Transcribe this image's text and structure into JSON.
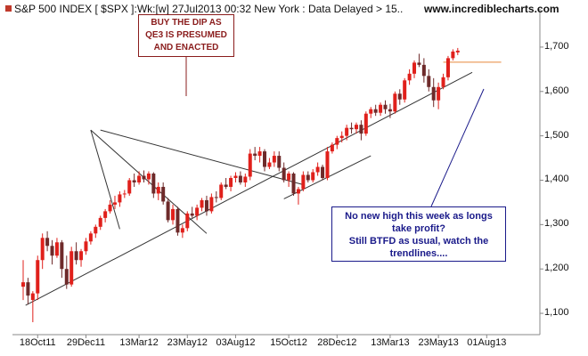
{
  "header": {
    "title": "S&P 500 INDEX [ $SPX ]:Wk:[w]  27Jul2013 00:32 New York : Data Delayed > 15..",
    "brand": "www.incrediblecharts.com",
    "marker_color": "#c0392b"
  },
  "annotations": {
    "top_note": [
      "BUY THE DIP AS",
      "QE3 IS PRESUMED",
      "AND ENACTED"
    ],
    "bottom_note": [
      "No new high this week as longs",
      "take profit?",
      "Still BTFD as usual, watch the",
      "trendlines...."
    ]
  },
  "colors": {
    "up": "#e0201b",
    "down": "#6e2a2a",
    "trendline": "#333333",
    "resistance": "#e8883a",
    "note_red": "#8a1c1c",
    "note_blue": "#1a1a8a",
    "axis": "#888888"
  },
  "chart_data": {
    "type": "candlestick",
    "title": "S&P 500 INDEX [ $SPX ]:Wk:[w]",
    "ylim": [
      1060,
      1760
    ],
    "y_ticks": [
      {
        "value": 1700,
        "label": "1,700"
      },
      {
        "value": 1600,
        "label": "1,600"
      },
      {
        "value": 1500,
        "label": "1,500"
      },
      {
        "value": 1400,
        "label": "1,400"
      },
      {
        "value": 1300,
        "label": "1,300"
      },
      {
        "value": 1200,
        "label": "1,200"
      },
      {
        "value": 1100,
        "label": "1,100"
      }
    ],
    "x_ticks": [
      {
        "week": 3,
        "label": "18Oct11"
      },
      {
        "week": 13,
        "label": "29Dec11"
      },
      {
        "week": 24,
        "label": "13Mar12"
      },
      {
        "week": 34,
        "label": "23May12"
      },
      {
        "week": 44,
        "label": "03Aug12"
      },
      {
        "week": 55,
        "label": "15Oct12"
      },
      {
        "week": 65,
        "label": "28Dec12"
      },
      {
        "week": 76,
        "label": "13Mar13"
      },
      {
        "week": 86,
        "label": "23May13"
      },
      {
        "week": 96,
        "label": "01Aug13"
      }
    ],
    "candles": [
      {
        "o": 1160,
        "h": 1220,
        "l": 1130,
        "c": 1170
      },
      {
        "o": 1170,
        "h": 1180,
        "l": 1120,
        "c": 1140
      },
      {
        "o": 1130,
        "h": 1150,
        "l": 1080,
        "c": 1145
      },
      {
        "o": 1145,
        "h": 1230,
        "l": 1130,
        "c": 1220
      },
      {
        "o": 1220,
        "h": 1280,
        "l": 1200,
        "c": 1270
      },
      {
        "o": 1270,
        "h": 1285,
        "l": 1240,
        "c": 1252
      },
      {
        "o": 1252,
        "h": 1265,
        "l": 1210,
        "c": 1230
      },
      {
        "o": 1230,
        "h": 1270,
        "l": 1225,
        "c": 1260
      },
      {
        "o": 1260,
        "h": 1265,
        "l": 1180,
        "c": 1200
      },
      {
        "o": 1200,
        "h": 1230,
        "l": 1155,
        "c": 1165
      },
      {
        "o": 1165,
        "h": 1250,
        "l": 1160,
        "c": 1240
      },
      {
        "o": 1240,
        "h": 1260,
        "l": 1210,
        "c": 1220
      },
      {
        "o": 1220,
        "h": 1245,
        "l": 1205,
        "c": 1240
      },
      {
        "o": 1240,
        "h": 1270,
        "l": 1232,
        "c": 1262
      },
      {
        "o": 1262,
        "h": 1285,
        "l": 1255,
        "c": 1280
      },
      {
        "o": 1280,
        "h": 1300,
        "l": 1270,
        "c": 1295
      },
      {
        "o": 1295,
        "h": 1320,
        "l": 1288,
        "c": 1315
      },
      {
        "o": 1315,
        "h": 1335,
        "l": 1305,
        "c": 1330
      },
      {
        "o": 1330,
        "h": 1355,
        "l": 1325,
        "c": 1345
      },
      {
        "o": 1345,
        "h": 1365,
        "l": 1335,
        "c": 1350
      },
      {
        "o": 1350,
        "h": 1375,
        "l": 1340,
        "c": 1368
      },
      {
        "o": 1368,
        "h": 1378,
        "l": 1360,
        "c": 1370
      },
      {
        "o": 1370,
        "h": 1405,
        "l": 1365,
        "c": 1400
      },
      {
        "o": 1400,
        "h": 1415,
        "l": 1385,
        "c": 1395
      },
      {
        "o": 1395,
        "h": 1420,
        "l": 1390,
        "c": 1410
      },
      {
        "o": 1410,
        "h": 1422,
        "l": 1395,
        "c": 1402
      },
      {
        "o": 1402,
        "h": 1420,
        "l": 1390,
        "c": 1415
      },
      {
        "o": 1415,
        "h": 1418,
        "l": 1360,
        "c": 1370
      },
      {
        "o": 1370,
        "h": 1395,
        "l": 1355,
        "c": 1385
      },
      {
        "o": 1385,
        "h": 1395,
        "l": 1345,
        "c": 1352
      },
      {
        "o": 1352,
        "h": 1360,
        "l": 1305,
        "c": 1310
      },
      {
        "o": 1310,
        "h": 1345,
        "l": 1300,
        "c": 1335
      },
      {
        "o": 1335,
        "h": 1340,
        "l": 1275,
        "c": 1282
      },
      {
        "o": 1282,
        "h": 1300,
        "l": 1270,
        "c": 1292
      },
      {
        "o": 1292,
        "h": 1330,
        "l": 1285,
        "c": 1325
      },
      {
        "o": 1325,
        "h": 1340,
        "l": 1315,
        "c": 1320
      },
      {
        "o": 1320,
        "h": 1345,
        "l": 1310,
        "c": 1338
      },
      {
        "o": 1338,
        "h": 1360,
        "l": 1330,
        "c": 1355
      },
      {
        "o": 1355,
        "h": 1365,
        "l": 1320,
        "c": 1330
      },
      {
        "o": 1330,
        "h": 1370,
        "l": 1325,
        "c": 1362
      },
      {
        "o": 1362,
        "h": 1375,
        "l": 1350,
        "c": 1360
      },
      {
        "o": 1360,
        "h": 1395,
        "l": 1355,
        "c": 1390
      },
      {
        "o": 1390,
        "h": 1405,
        "l": 1380,
        "c": 1385
      },
      {
        "o": 1385,
        "h": 1410,
        "l": 1375,
        "c": 1405
      },
      {
        "o": 1405,
        "h": 1418,
        "l": 1395,
        "c": 1410
      },
      {
        "o": 1410,
        "h": 1420,
        "l": 1390,
        "c": 1395
      },
      {
        "o": 1395,
        "h": 1415,
        "l": 1385,
        "c": 1408
      },
      {
        "o": 1408,
        "h": 1470,
        "l": 1400,
        "c": 1460
      },
      {
        "o": 1460,
        "h": 1475,
        "l": 1445,
        "c": 1455
      },
      {
        "o": 1455,
        "h": 1475,
        "l": 1440,
        "c": 1465
      },
      {
        "o": 1465,
        "h": 1470,
        "l": 1420,
        "c": 1430
      },
      {
        "o": 1430,
        "h": 1450,
        "l": 1425,
        "c": 1440
      },
      {
        "o": 1440,
        "h": 1465,
        "l": 1430,
        "c": 1455
      },
      {
        "o": 1455,
        "h": 1465,
        "l": 1420,
        "c": 1428
      },
      {
        "o": 1428,
        "h": 1440,
        "l": 1395,
        "c": 1400
      },
      {
        "o": 1400,
        "h": 1420,
        "l": 1385,
        "c": 1415
      },
      {
        "o": 1415,
        "h": 1418,
        "l": 1365,
        "c": 1370
      },
      {
        "o": 1370,
        "h": 1385,
        "l": 1345,
        "c": 1380
      },
      {
        "o": 1380,
        "h": 1420,
        "l": 1375,
        "c": 1412
      },
      {
        "o": 1412,
        "h": 1420,
        "l": 1395,
        "c": 1400
      },
      {
        "o": 1400,
        "h": 1425,
        "l": 1395,
        "c": 1418
      },
      {
        "o": 1418,
        "h": 1440,
        "l": 1410,
        "c": 1430
      },
      {
        "o": 1430,
        "h": 1435,
        "l": 1400,
        "c": 1405
      },
      {
        "o": 1405,
        "h": 1475,
        "l": 1400,
        "c": 1465
      },
      {
        "o": 1465,
        "h": 1485,
        "l": 1460,
        "c": 1480
      },
      {
        "o": 1480,
        "h": 1500,
        "l": 1470,
        "c": 1495
      },
      {
        "o": 1495,
        "h": 1510,
        "l": 1485,
        "c": 1500
      },
      {
        "o": 1500,
        "h": 1525,
        "l": 1490,
        "c": 1518
      },
      {
        "o": 1518,
        "h": 1530,
        "l": 1505,
        "c": 1515
      },
      {
        "o": 1515,
        "h": 1530,
        "l": 1505,
        "c": 1525
      },
      {
        "o": 1525,
        "h": 1535,
        "l": 1490,
        "c": 1505
      },
      {
        "o": 1505,
        "h": 1555,
        "l": 1500,
        "c": 1550
      },
      {
        "o": 1550,
        "h": 1565,
        "l": 1540,
        "c": 1560
      },
      {
        "o": 1560,
        "h": 1570,
        "l": 1545,
        "c": 1552
      },
      {
        "o": 1552,
        "h": 1575,
        "l": 1545,
        "c": 1570
      },
      {
        "o": 1570,
        "h": 1580,
        "l": 1550,
        "c": 1560
      },
      {
        "o": 1560,
        "h": 1572,
        "l": 1540,
        "c": 1555
      },
      {
        "o": 1555,
        "h": 1600,
        "l": 1550,
        "c": 1595
      },
      {
        "o": 1595,
        "h": 1605,
        "l": 1570,
        "c": 1582
      },
      {
        "o": 1582,
        "h": 1630,
        "l": 1575,
        "c": 1625
      },
      {
        "o": 1625,
        "h": 1650,
        "l": 1615,
        "c": 1640
      },
      {
        "o": 1640,
        "h": 1670,
        "l": 1630,
        "c": 1665
      },
      {
        "o": 1665,
        "h": 1685,
        "l": 1655,
        "c": 1660
      },
      {
        "o": 1660,
        "h": 1675,
        "l": 1620,
        "c": 1635
      },
      {
        "o": 1635,
        "h": 1650,
        "l": 1600,
        "c": 1610
      },
      {
        "o": 1610,
        "h": 1630,
        "l": 1565,
        "c": 1580
      },
      {
        "o": 1580,
        "h": 1620,
        "l": 1560,
        "c": 1610
      },
      {
        "o": 1610,
        "h": 1640,
        "l": 1605,
        "c": 1632
      },
      {
        "o": 1632,
        "h": 1680,
        "l": 1625,
        "c": 1675
      },
      {
        "o": 1675,
        "h": 1695,
        "l": 1670,
        "c": 1690
      },
      {
        "o": 1688,
        "h": 1698,
        "l": 1682,
        "c": 1692
      }
    ],
    "lines": [
      {
        "kind": "trendline",
        "from": {
          "week": 0.5,
          "value": 1118
        },
        "to": {
          "week": 93,
          "value": 1643
        }
      },
      {
        "kind": "trendline",
        "from": {
          "week": 54,
          "value": 1358
        },
        "to": {
          "week": 72,
          "value": 1455
        }
      },
      {
        "kind": "trendline",
        "from": {
          "week": 38,
          "value": 1280
        },
        "to": {
          "week": 14,
          "value": 1513
        }
      },
      {
        "kind": "trendline",
        "from": {
          "week": 14,
          "value": 1513
        },
        "to": {
          "week": 20,
          "value": 1290
        }
      },
      {
        "kind": "trendline",
        "from": {
          "week": 16,
          "value": 1513
        },
        "to": {
          "week": 58,
          "value": 1390
        }
      },
      {
        "kind": "resistance",
        "from": {
          "week": 87,
          "value": 1666
        },
        "to": {
          "week": 99,
          "value": 1666
        }
      }
    ],
    "grid": false,
    "legend": "none"
  }
}
